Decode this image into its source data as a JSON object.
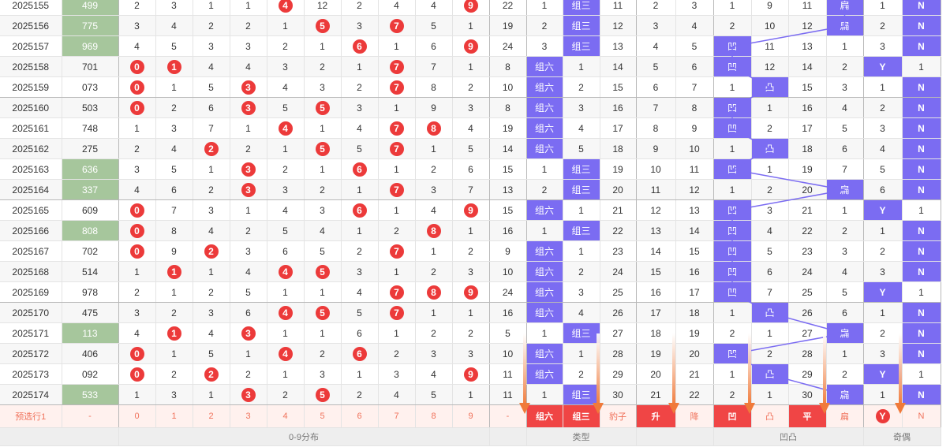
{
  "rows": [
    {
      "issue": "2025155",
      "num": "499",
      "num_hl": true,
      "dist": [
        "2",
        "3",
        "1",
        "1",
        "4",
        "12",
        "2",
        "4",
        "4",
        "9"
      ],
      "dist_red": [
        4,
        9
      ],
      "sum": "22",
      "type": [
        "1",
        "组三",
        "11"
      ],
      "upd": [
        "2",
        "3"
      ],
      "shape": [
        "1",
        "9",
        "11",
        "扁"
      ],
      "shape_blue": [
        3
      ],
      "odd": [
        "1",
        "N"
      ],
      "odd_blue": [
        1
      ]
    },
    {
      "issue": "2025156",
      "num": "775",
      "num_hl": true,
      "dist": [
        "3",
        "4",
        "2",
        "2",
        "1",
        "5",
        "3",
        "7",
        "5",
        "1"
      ],
      "dist_red": [
        5,
        7
      ],
      "sum": "19",
      "type": [
        "2",
        "组三",
        "12"
      ],
      "upd": [
        "3",
        "4"
      ],
      "shape": [
        "2",
        "10",
        "12",
        "扁"
      ],
      "shape_blue": [
        3
      ],
      "odd": [
        "2",
        "N"
      ],
      "odd_blue": [
        1
      ]
    },
    {
      "issue": "2025157",
      "num": "969",
      "num_hl": true,
      "dist": [
        "4",
        "5",
        "3",
        "3",
        "2",
        "1",
        "6",
        "1",
        "6",
        "9"
      ],
      "dist_red": [
        6,
        9
      ],
      "sum": "24",
      "type": [
        "3",
        "组三",
        "13"
      ],
      "upd": [
        "4",
        "5"
      ],
      "shape": [
        "凹",
        "11",
        "13",
        "1"
      ],
      "shape_blue": [
        0
      ],
      "odd": [
        "3",
        "N"
      ],
      "odd_blue": [
        1
      ]
    },
    {
      "issue": "2025158",
      "num": "701",
      "num_hl": false,
      "dist": [
        "0",
        "1",
        "4",
        "4",
        "3",
        "2",
        "1",
        "7",
        "7",
        "1"
      ],
      "dist_red": [
        0,
        1,
        7
      ],
      "sum": "8",
      "type": [
        "组六",
        "1",
        "14"
      ],
      "upd": [
        "5",
        "6"
      ],
      "shape": [
        "凹",
        "12",
        "14",
        "2"
      ],
      "shape_blue": [
        0
      ],
      "odd": [
        "Y",
        "1"
      ],
      "odd_blue": [
        0
      ]
    },
    {
      "issue": "2025159",
      "num": "073",
      "num_hl": false,
      "dist": [
        "0",
        "1",
        "5",
        "3",
        "4",
        "3",
        "2",
        "7",
        "8",
        "2"
      ],
      "dist_red": [
        0,
        3,
        7
      ],
      "sum": "10",
      "type": [
        "组六",
        "2",
        "15"
      ],
      "upd": [
        "6",
        "7"
      ],
      "shape": [
        "1",
        "凸",
        "15",
        "3"
      ],
      "shape_blue": [
        1
      ],
      "odd": [
        "1",
        "N"
      ],
      "odd_blue": [
        1
      ]
    },
    {
      "issue": "2025160",
      "num": "503",
      "num_hl": false,
      "dist": [
        "0",
        "2",
        "6",
        "3",
        "5",
        "5",
        "3",
        "1",
        "9",
        "3"
      ],
      "dist_red": [
        0,
        3,
        5
      ],
      "sum": "8",
      "type": [
        "组六",
        "3",
        "16"
      ],
      "upd": [
        "7",
        "8"
      ],
      "shape": [
        "凹",
        "1",
        "16",
        "4"
      ],
      "shape_blue": [
        0
      ],
      "odd": [
        "2",
        "N"
      ],
      "odd_blue": [
        1
      ]
    },
    {
      "issue": "2025161",
      "num": "748",
      "num_hl": false,
      "dist": [
        "1",
        "3",
        "7",
        "1",
        "4",
        "1",
        "4",
        "7",
        "8",
        "4"
      ],
      "dist_red": [
        4,
        7,
        8
      ],
      "sum": "19",
      "type": [
        "组六",
        "4",
        "17"
      ],
      "upd": [
        "8",
        "9"
      ],
      "shape": [
        "凹",
        "2",
        "17",
        "5"
      ],
      "shape_blue": [
        0
      ],
      "odd": [
        "3",
        "N"
      ],
      "odd_blue": [
        1
      ]
    },
    {
      "issue": "2025162",
      "num": "275",
      "num_hl": false,
      "dist": [
        "2",
        "4",
        "2",
        "2",
        "1",
        "5",
        "5",
        "7",
        "1",
        "5"
      ],
      "dist_red": [
        2,
        5,
        7
      ],
      "sum": "14",
      "type": [
        "组六",
        "5",
        "18"
      ],
      "upd": [
        "9",
        "10"
      ],
      "shape": [
        "1",
        "凸",
        "18",
        "6"
      ],
      "shape_blue": [
        1
      ],
      "odd": [
        "4",
        "N"
      ],
      "odd_blue": [
        1
      ]
    },
    {
      "issue": "2025163",
      "num": "636",
      "num_hl": true,
      "dist": [
        "3",
        "5",
        "1",
        "3",
        "2",
        "1",
        "6",
        "1",
        "2",
        "6"
      ],
      "dist_red": [
        3,
        6
      ],
      "sum": "15",
      "type": [
        "1",
        "组三",
        "19"
      ],
      "upd": [
        "10",
        "11"
      ],
      "shape": [
        "凹",
        "1",
        "19",
        "7"
      ],
      "shape_blue": [
        0
      ],
      "odd": [
        "5",
        "N"
      ],
      "odd_blue": [
        1
      ]
    },
    {
      "issue": "2025164",
      "num": "337",
      "num_hl": true,
      "dist": [
        "4",
        "6",
        "2",
        "3",
        "3",
        "2",
        "1",
        "7",
        "3",
        "7"
      ],
      "dist_red": [
        3,
        7
      ],
      "sum": "13",
      "type": [
        "2",
        "组三",
        "20"
      ],
      "upd": [
        "11",
        "12"
      ],
      "shape": [
        "1",
        "2",
        "20",
        "扁"
      ],
      "shape_blue": [
        3
      ],
      "odd": [
        "6",
        "N"
      ],
      "odd_blue": [
        1
      ]
    },
    {
      "issue": "2025165",
      "num": "609",
      "num_hl": false,
      "dist": [
        "0",
        "7",
        "3",
        "1",
        "4",
        "3",
        "6",
        "1",
        "4",
        "9"
      ],
      "dist_red": [
        0,
        6,
        9
      ],
      "sum": "15",
      "type": [
        "组六",
        "1",
        "21"
      ],
      "upd": [
        "12",
        "13"
      ],
      "shape": [
        "凹",
        "3",
        "21",
        "1"
      ],
      "shape_blue": [
        0
      ],
      "odd": [
        "Y",
        "1"
      ],
      "odd_blue": [
        0
      ]
    },
    {
      "issue": "2025166",
      "num": "808",
      "num_hl": true,
      "dist": [
        "0",
        "8",
        "4",
        "2",
        "5",
        "4",
        "1",
        "2",
        "8",
        "1"
      ],
      "dist_red": [
        0,
        8
      ],
      "sum": "16",
      "type": [
        "1",
        "组三",
        "22"
      ],
      "upd": [
        "13",
        "14"
      ],
      "shape": [
        "凹",
        "4",
        "22",
        "2"
      ],
      "shape_blue": [
        0
      ],
      "odd": [
        "1",
        "N"
      ],
      "odd_blue": [
        1
      ]
    },
    {
      "issue": "2025167",
      "num": "702",
      "num_hl": false,
      "dist": [
        "0",
        "9",
        "2",
        "3",
        "6",
        "5",
        "2",
        "7",
        "1",
        "2"
      ],
      "dist_red": [
        0,
        2,
        7
      ],
      "sum": "9",
      "type": [
        "组六",
        "1",
        "23"
      ],
      "upd": [
        "14",
        "15"
      ],
      "shape": [
        "凹",
        "5",
        "23",
        "3"
      ],
      "shape_blue": [
        0
      ],
      "odd": [
        "2",
        "N"
      ],
      "odd_blue": [
        1
      ]
    },
    {
      "issue": "2025168",
      "num": "514",
      "num_hl": false,
      "dist": [
        "1",
        "1",
        "1",
        "4",
        "4",
        "5",
        "3",
        "1",
        "2",
        "3"
      ],
      "dist_red": [
        1,
        4,
        5
      ],
      "sum": "10",
      "type": [
        "组六",
        "2",
        "24"
      ],
      "upd": [
        "15",
        "16"
      ],
      "shape": [
        "凹",
        "6",
        "24",
        "4"
      ],
      "shape_blue": [
        0
      ],
      "odd": [
        "3",
        "N"
      ],
      "odd_blue": [
        1
      ]
    },
    {
      "issue": "2025169",
      "num": "978",
      "num_hl": false,
      "dist": [
        "2",
        "1",
        "2",
        "5",
        "1",
        "1",
        "4",
        "7",
        "8",
        "9"
      ],
      "dist_red": [
        7,
        8,
        9
      ],
      "sum": "24",
      "type": [
        "组六",
        "3",
        "25"
      ],
      "upd": [
        "16",
        "17"
      ],
      "shape": [
        "凹",
        "7",
        "25",
        "5"
      ],
      "shape_blue": [
        0
      ],
      "odd": [
        "Y",
        "1"
      ],
      "odd_blue": [
        0
      ]
    },
    {
      "issue": "2025170",
      "num": "475",
      "num_hl": false,
      "dist": [
        "3",
        "2",
        "3",
        "6",
        "4",
        "5",
        "5",
        "7",
        "1",
        "1"
      ],
      "dist_red": [
        4,
        5,
        7
      ],
      "sum": "16",
      "type": [
        "组六",
        "4",
        "26"
      ],
      "upd": [
        "17",
        "18"
      ],
      "shape": [
        "1",
        "凸",
        "26",
        "6"
      ],
      "shape_blue": [
        1
      ],
      "odd": [
        "1",
        "N"
      ],
      "odd_blue": [
        1
      ]
    },
    {
      "issue": "2025171",
      "num": "113",
      "num_hl": true,
      "dist": [
        "4",
        "1",
        "4",
        "3",
        "1",
        "1",
        "6",
        "1",
        "2",
        "2"
      ],
      "dist_red": [
        1,
        3
      ],
      "sum": "5",
      "type": [
        "1",
        "组三",
        "27"
      ],
      "upd": [
        "18",
        "19"
      ],
      "shape": [
        "2",
        "1",
        "27",
        "扁"
      ],
      "shape_blue": [
        3
      ],
      "odd": [
        "2",
        "N"
      ],
      "odd_blue": [
        1
      ]
    },
    {
      "issue": "2025172",
      "num": "406",
      "num_hl": false,
      "dist": [
        "0",
        "1",
        "5",
        "1",
        "4",
        "2",
        "6",
        "2",
        "3",
        "3"
      ],
      "dist_red": [
        0,
        4,
        6
      ],
      "sum": "10",
      "type": [
        "组六",
        "1",
        "28"
      ],
      "upd": [
        "19",
        "20"
      ],
      "shape": [
        "凹",
        "2",
        "28",
        "1"
      ],
      "shape_blue": [
        0
      ],
      "odd": [
        "3",
        "N"
      ],
      "odd_blue": [
        1
      ]
    },
    {
      "issue": "2025173",
      "num": "092",
      "num_hl": false,
      "dist": [
        "0",
        "2",
        "2",
        "2",
        "1",
        "3",
        "1",
        "3",
        "4",
        "9"
      ],
      "dist_red": [
        0,
        2,
        9
      ],
      "sum": "11",
      "type": [
        "组六",
        "2",
        "29"
      ],
      "upd": [
        "20",
        "21"
      ],
      "shape": [
        "1",
        "凸",
        "29",
        "2"
      ],
      "shape_blue": [
        1
      ],
      "odd": [
        "Y",
        "1"
      ],
      "odd_blue": [
        0
      ]
    },
    {
      "issue": "2025174",
      "num": "533",
      "num_hl": true,
      "dist": [
        "1",
        "3",
        "1",
        "3",
        "2",
        "5",
        "2",
        "4",
        "5",
        "1"
      ],
      "dist_red": [
        3,
        5
      ],
      "sum": "11",
      "type": [
        "1",
        "组三",
        "30"
      ],
      "upd": [
        "21",
        "22"
      ],
      "shape": [
        "2",
        "1",
        "30",
        "扁"
      ],
      "shape_blue": [
        3
      ],
      "odd": [
        "1",
        "N"
      ],
      "odd_blue": [
        1
      ]
    }
  ],
  "preselect": {
    "label": "预选行1",
    "num": "-",
    "digits": [
      "0",
      "1",
      "2",
      "3",
      "4",
      "5",
      "6",
      "7",
      "8",
      "9"
    ],
    "sum": "-",
    "type": [
      "组六",
      "组三",
      "豹子"
    ],
    "upd": [
      "升",
      "降"
    ],
    "shape": [
      "凹",
      "凸",
      "平",
      "扁"
    ],
    "odd": [
      "Y",
      "N"
    ]
  },
  "footer": {
    "dist": "0-9分布",
    "type": "类型",
    "shape": "凹凸",
    "odd": "奇偶"
  },
  "colors": {
    "blue": "#7b6cf2",
    "red": "#ec3a3a",
    "green": "#a6c69c",
    "arrow": "#f07a3a"
  }
}
